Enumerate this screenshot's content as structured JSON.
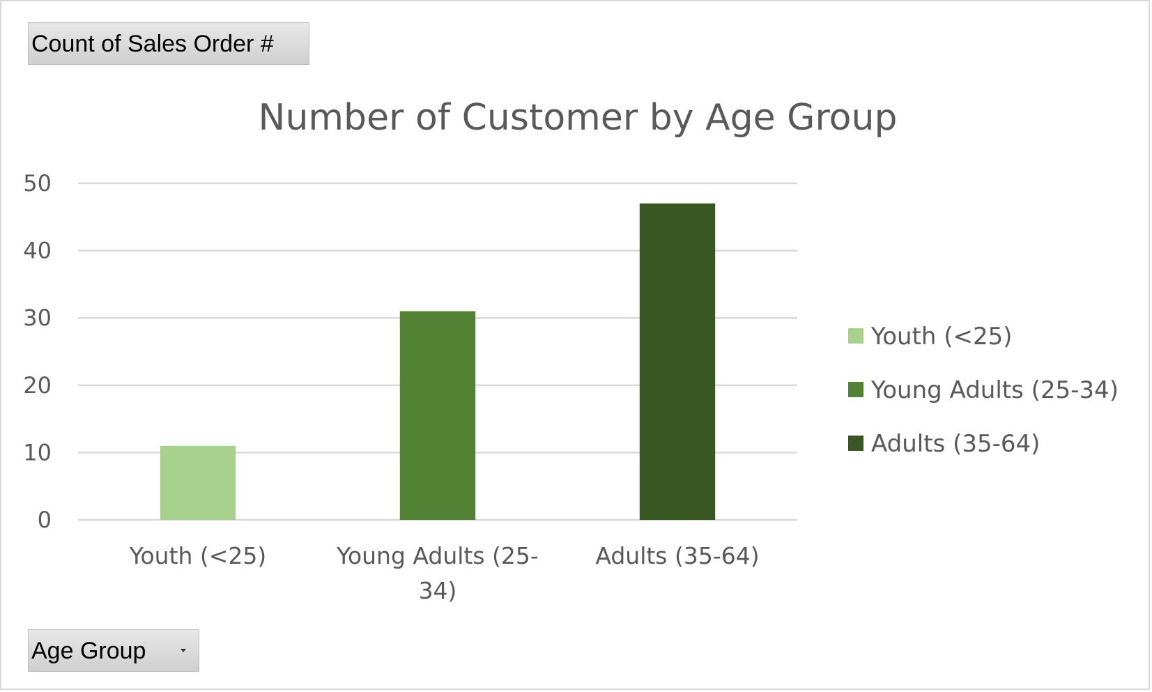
{
  "values_field_button": {
    "label": "Count of Sales Order #"
  },
  "axis_field_button": {
    "label": "Age Group"
  },
  "chart_data": {
    "type": "bar",
    "title": "Number of Customer by Age Group",
    "xlabel": "",
    "ylabel": "",
    "categories": [
      "Youth (<25)",
      "Young Adults (25-34)",
      "Adults (35-64)"
    ],
    "category_label_lines": [
      [
        "Youth (<25)"
      ],
      [
        "Young Adults (25-",
        "34)"
      ],
      [
        "Adults (35-64)"
      ]
    ],
    "values": [
      11,
      31,
      47
    ],
    "colors": [
      "#a9d18e",
      "#548235",
      "#385723"
    ],
    "ylim": [
      0,
      50
    ],
    "yticks": [
      0,
      10,
      20,
      30,
      40,
      50
    ],
    "grid": true,
    "legend": {
      "position": "right",
      "entries": [
        "Youth (<25)",
        "Young Adults (25-34)",
        "Adults (35-64)"
      ]
    }
  }
}
